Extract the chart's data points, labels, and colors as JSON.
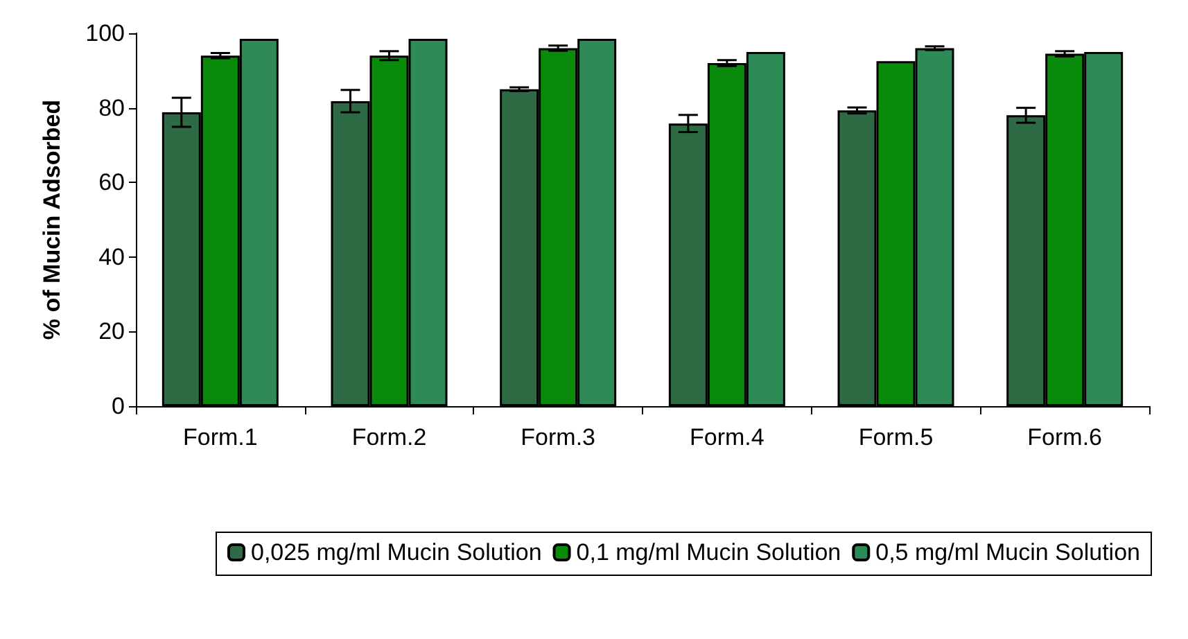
{
  "chart_data": {
    "type": "bar",
    "ylabel": "% of Mucin Adsorbed",
    "categories": [
      "Form.1",
      "Form.2",
      "Form.3",
      "Form.4",
      "Form.5",
      "Form.6"
    ],
    "series": [
      {
        "name": "0,025 mg/ml Mucin Solution",
        "color": "#2e6b45",
        "values": [
          78.8,
          81.8,
          85,
          75.8,
          79.3,
          78
        ],
        "errors": [
          3.9,
          3,
          0.5,
          2.3,
          0.8,
          2
        ]
      },
      {
        "name": "0,1 mg/ml Mucin Solution",
        "color": "#0a8a0a",
        "values": [
          94,
          94,
          96,
          92,
          92.5,
          94.5
        ],
        "errors": [
          0.7,
          1.2,
          0.7,
          0.8,
          null,
          0.7
        ]
      },
      {
        "name": "0,5 mg/ml Mucin Solution",
        "color": "#2e8b57",
        "values": [
          98.5,
          98.5,
          98.5,
          95,
          96,
          95
        ],
        "errors": [
          null,
          null,
          null,
          null,
          0.5,
          null
        ]
      }
    ],
    "ylim": [
      0,
      100
    ],
    "yticks": [
      0,
      20,
      40,
      60,
      80,
      100
    ],
    "grid": false,
    "legend": "bottom"
  }
}
